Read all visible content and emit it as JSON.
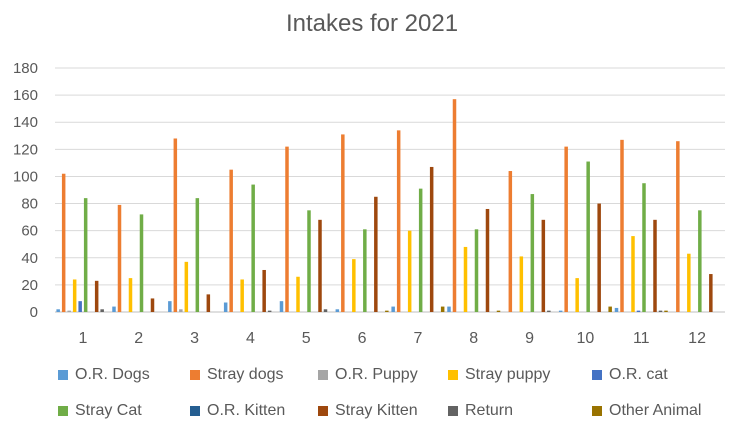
{
  "chart_data": {
    "type": "bar",
    "title": "Intakes for 2021",
    "xlabel": "",
    "ylabel": "",
    "ylim": [
      0,
      180
    ],
    "yticks": [
      0,
      20,
      40,
      60,
      80,
      100,
      120,
      140,
      160,
      180
    ],
    "grid": true,
    "legend_position": "bottom",
    "categories": [
      "1",
      "2",
      "3",
      "4",
      "5",
      "6",
      "7",
      "8",
      "9",
      "10",
      "11",
      "12"
    ],
    "series": [
      {
        "name": "O.R. Dogs",
        "color": "#5B9BD5",
        "values": [
          2,
          4,
          8,
          7,
          8,
          2,
          4,
          4,
          0,
          1,
          3,
          0
        ]
      },
      {
        "name": "Stray dogs",
        "color": "#ED7D31",
        "values": [
          102,
          79,
          128,
          105,
          122,
          131,
          134,
          157,
          104,
          122,
          127,
          126
        ]
      },
      {
        "name": "O.R. Puppy",
        "color": "#A5A5A5",
        "values": [
          1,
          0,
          2,
          0,
          0,
          0,
          0,
          0,
          0,
          0,
          0,
          0
        ]
      },
      {
        "name": "Stray puppy",
        "color": "#FFC000",
        "values": [
          24,
          25,
          37,
          24,
          26,
          39,
          60,
          48,
          41,
          25,
          56,
          43
        ]
      },
      {
        "name": "O.R. cat",
        "color": "#4472C4",
        "values": [
          8,
          0,
          0,
          0,
          0,
          0,
          0,
          0,
          0,
          0,
          1,
          0
        ]
      },
      {
        "name": "Stray Cat",
        "color": "#70AD47",
        "values": [
          84,
          72,
          84,
          94,
          75,
          61,
          91,
          61,
          87,
          111,
          95,
          75
        ]
      },
      {
        "name": "O.R. Kitten",
        "color": "#255E91",
        "values": [
          0,
          0,
          0,
          0,
          0,
          0,
          0,
          0,
          0,
          0,
          0,
          0
        ]
      },
      {
        "name": "Stray Kitten",
        "color": "#9E480E",
        "values": [
          23,
          10,
          13,
          31,
          68,
          85,
          107,
          76,
          68,
          80,
          68,
          28
        ]
      },
      {
        "name": "Return",
        "color": "#636363",
        "values": [
          2,
          0,
          0,
          1,
          2,
          0,
          0,
          0,
          1,
          0,
          1,
          0
        ]
      },
      {
        "name": "Other Animal",
        "color": "#997300",
        "values": [
          0,
          0,
          0,
          0,
          0,
          1,
          4,
          1,
          0,
          4,
          1,
          0
        ]
      }
    ]
  }
}
